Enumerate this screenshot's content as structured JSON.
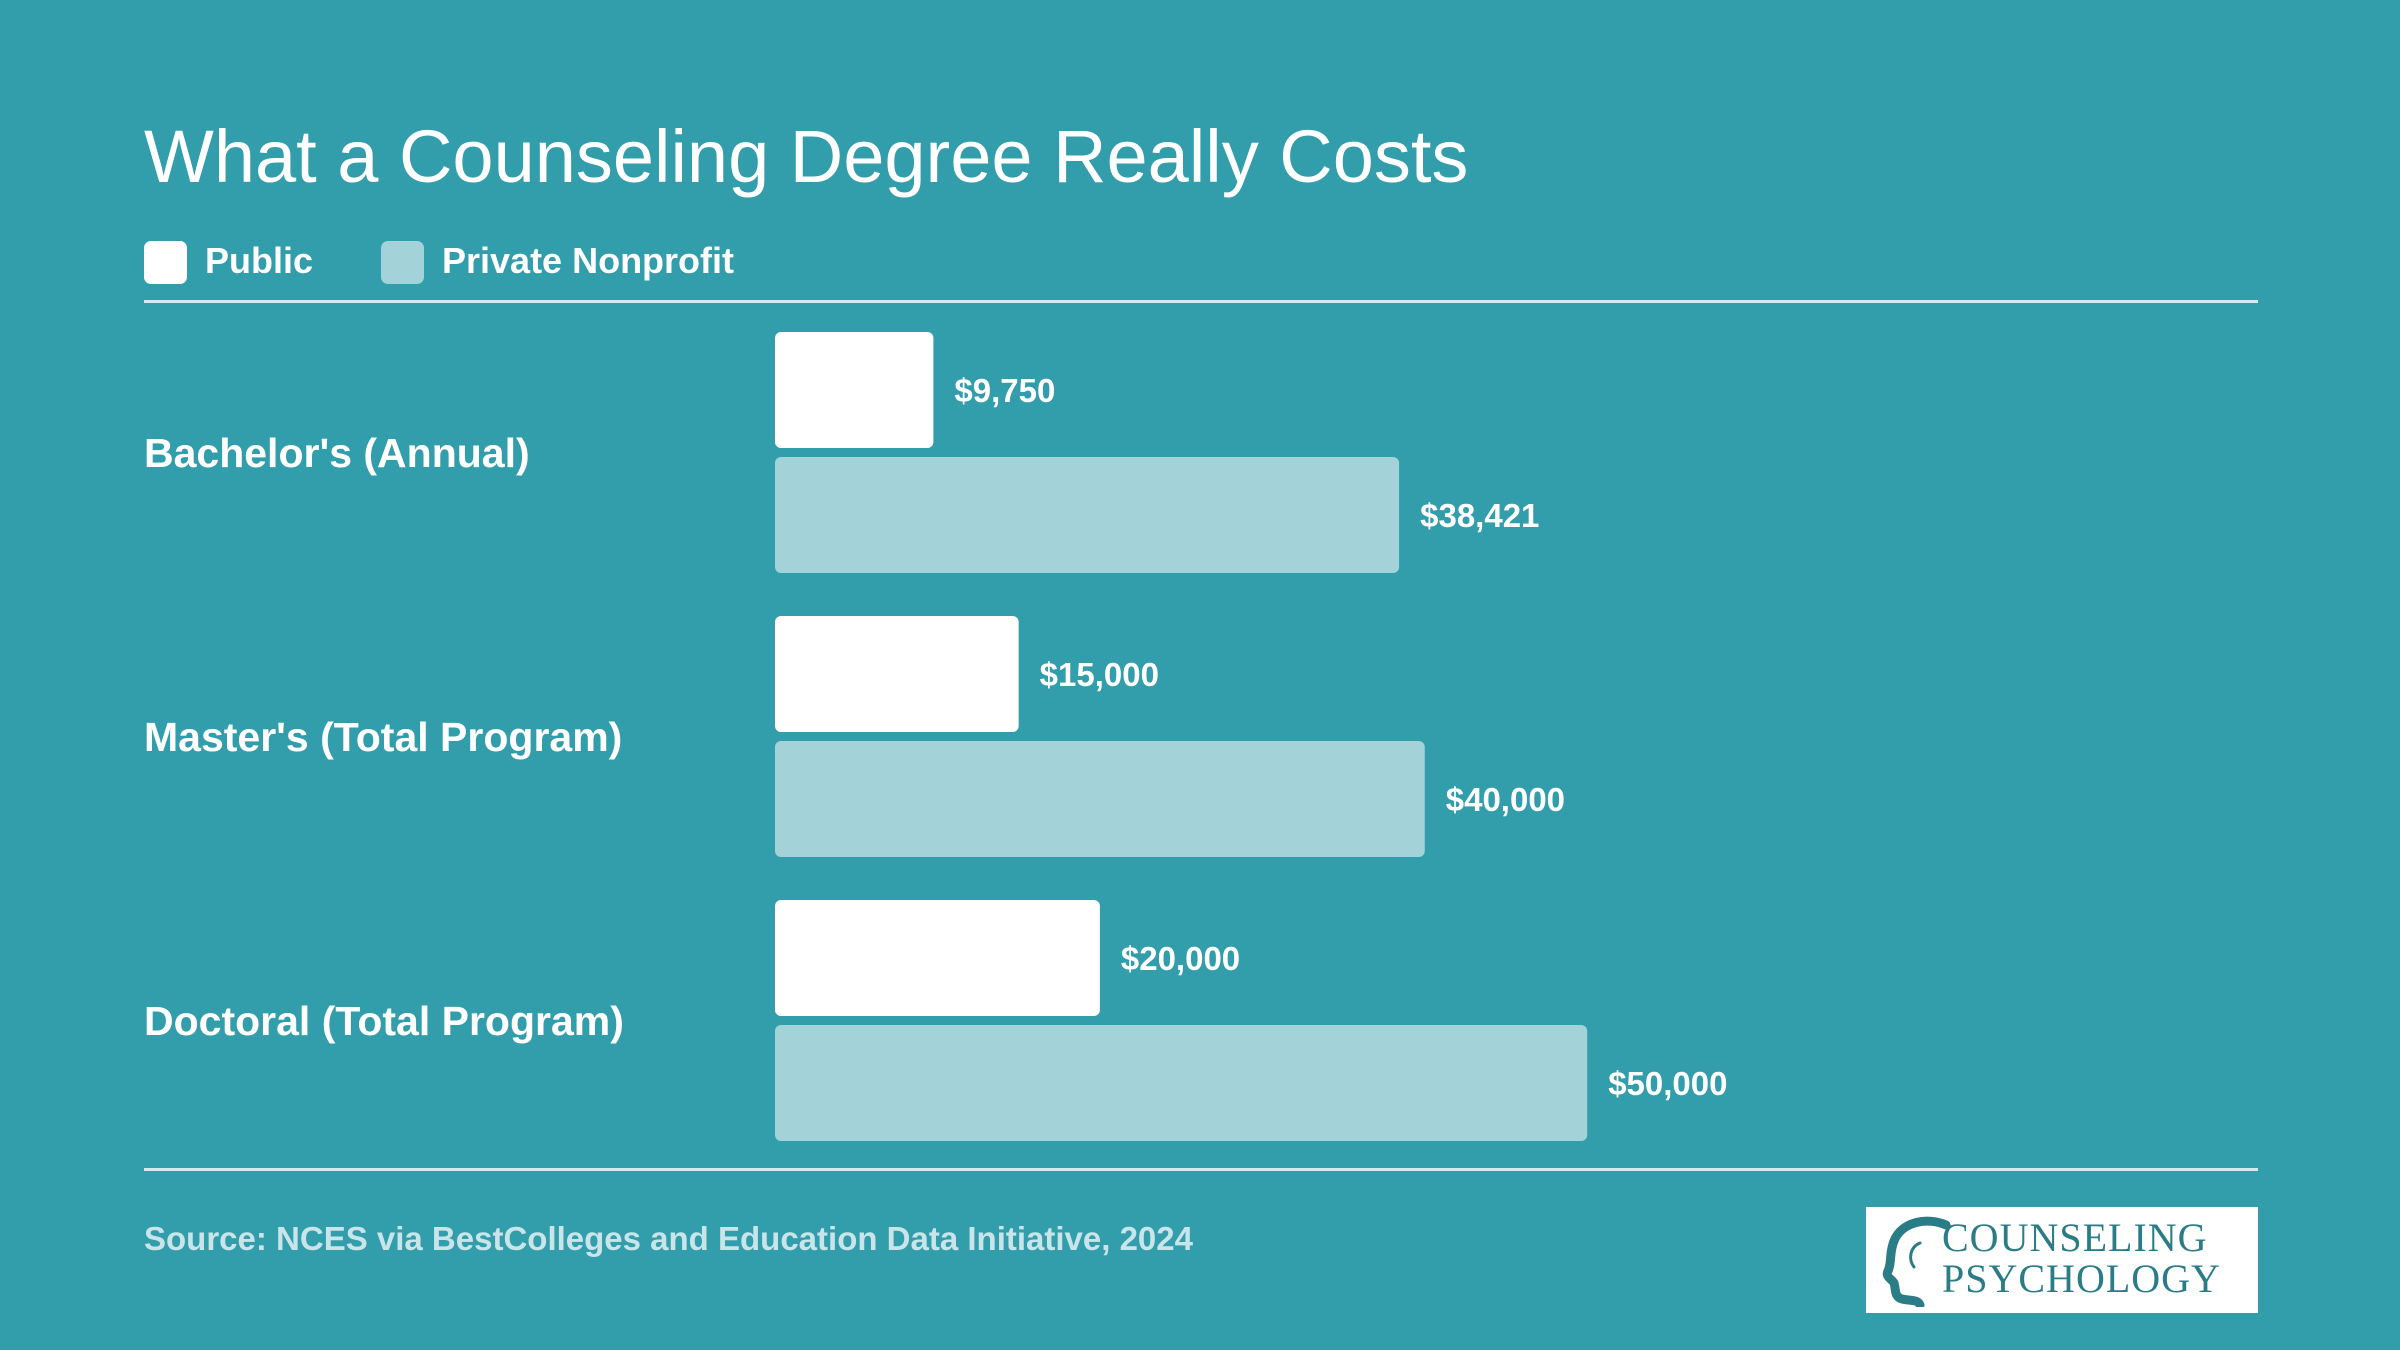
{
  "title": "What a Counseling Degree Really Costs",
  "legend": [
    {
      "label": "Public",
      "color": "#ffffff"
    },
    {
      "label": "Private Nonprofit",
      "color": "#a3d3d9"
    }
  ],
  "chart_data": {
    "type": "bar",
    "orientation": "horizontal",
    "title": "What a Counseling Degree Really Costs",
    "categories": [
      "Bachelor's (Annual)",
      "Master's (Total Program)",
      "Doctoral (Total Program)"
    ],
    "series": [
      {
        "name": "Public",
        "color": "#ffffff",
        "values": [
          9750,
          15000,
          20000
        ],
        "labels": [
          "$9,750",
          "$15,000",
          "$20,000"
        ]
      },
      {
        "name": "Private Nonprofit",
        "color": "#a3d3d9",
        "values": [
          38421,
          40000,
          50000
        ],
        "labels": [
          "$38,421",
          "$40,000",
          "$50,000"
        ]
      }
    ],
    "xlabel": "",
    "ylabel": "",
    "xlim": [
      0,
      60000
    ],
    "grid": false,
    "legend_position": "top-left"
  },
  "source": "Source: NCES via BestColleges and Education Data Initiative, 2024",
  "logo": {
    "line1": "COUNSELING",
    "line2": "PSYCHOLOGY"
  }
}
